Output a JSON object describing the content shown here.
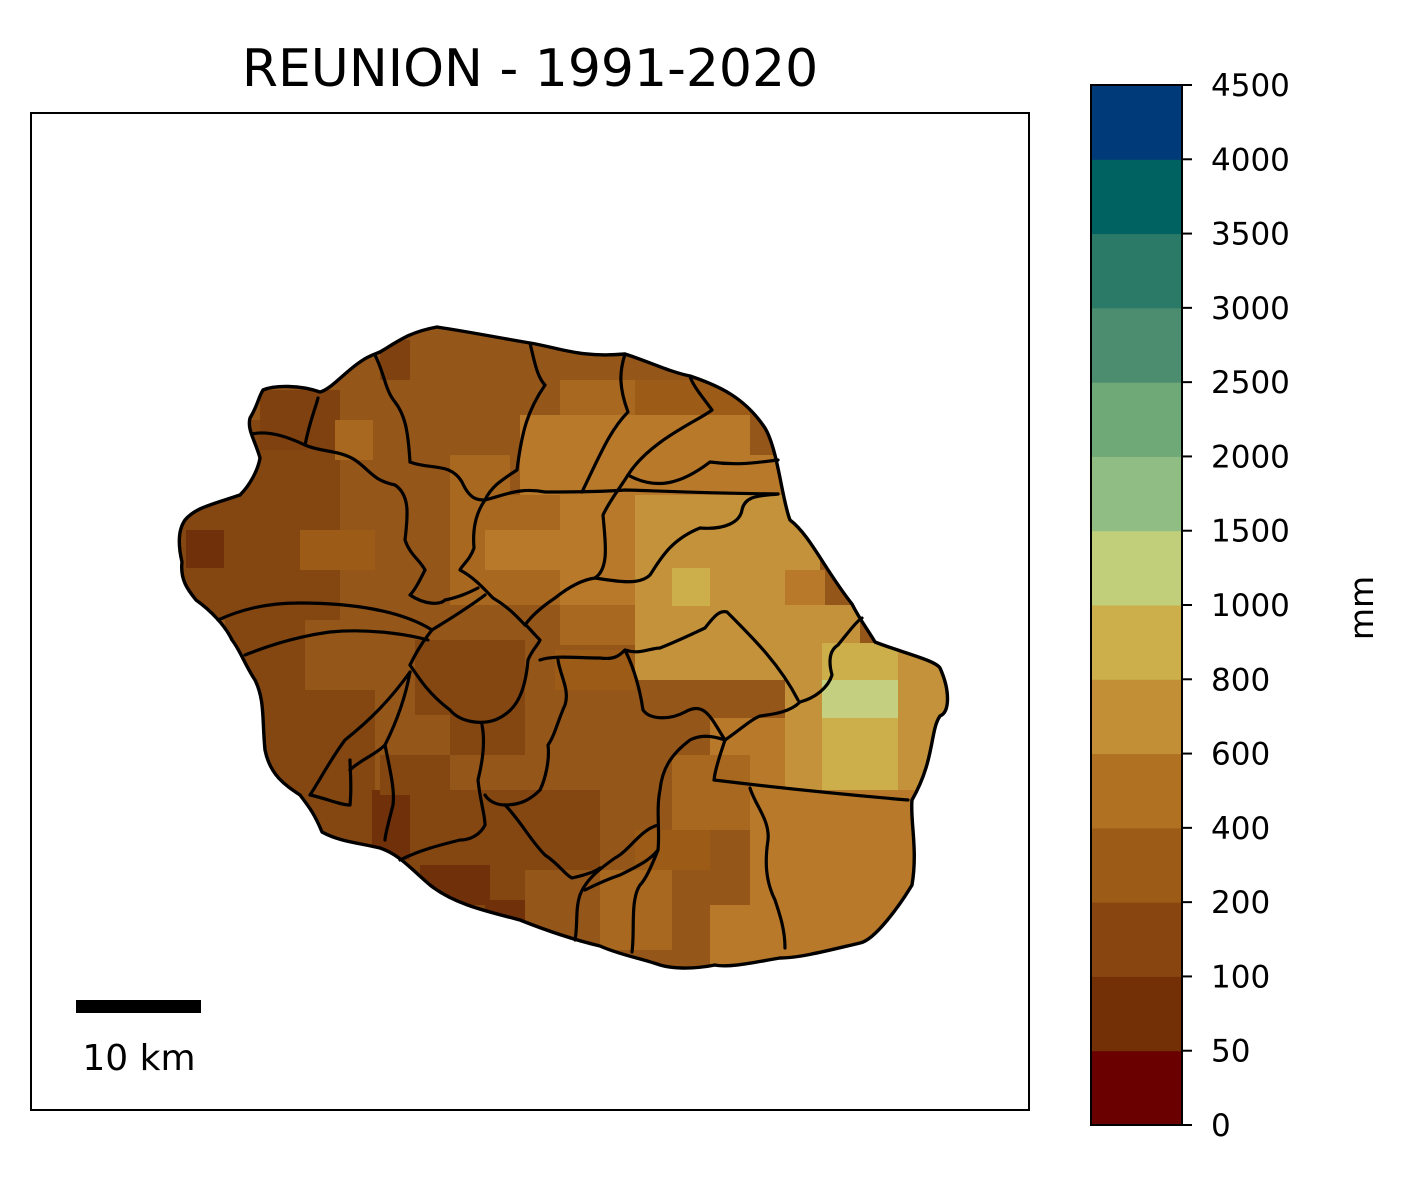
{
  "map": {
    "title": "REUNION - 1991-2020",
    "region": "Réunion",
    "period": "1991-2020"
  },
  "scale_bar": {
    "label": "10 km",
    "length_km": 10
  },
  "colorbar": {
    "unit": "mm",
    "bounds": [
      "0",
      "50",
      "100",
      "200",
      "400",
      "600",
      "800",
      "1000",
      "1500",
      "2000",
      "2500",
      "3000",
      "3500",
      "4000",
      "4500"
    ],
    "colors": [
      "#6b0000",
      "#733007",
      "#884510",
      "#9c5c18",
      "#b07222",
      "#c38f36",
      "#ccae4b",
      "#c1cf7b",
      "#8fbd83",
      "#6fa978",
      "#4c8d6f",
      "#2b7a68",
      "#006261",
      "#003a78"
    ]
  },
  "fill_colors": {
    "base": "#95561a",
    "dark": "#7e410f",
    "darkest": "#70300a",
    "mid": "#a8681f",
    "light": "#b8792a",
    "lighter": "#c4923a",
    "pale": "#ccae4b",
    "green": "#c4cf80",
    "outline": "#000000"
  }
}
